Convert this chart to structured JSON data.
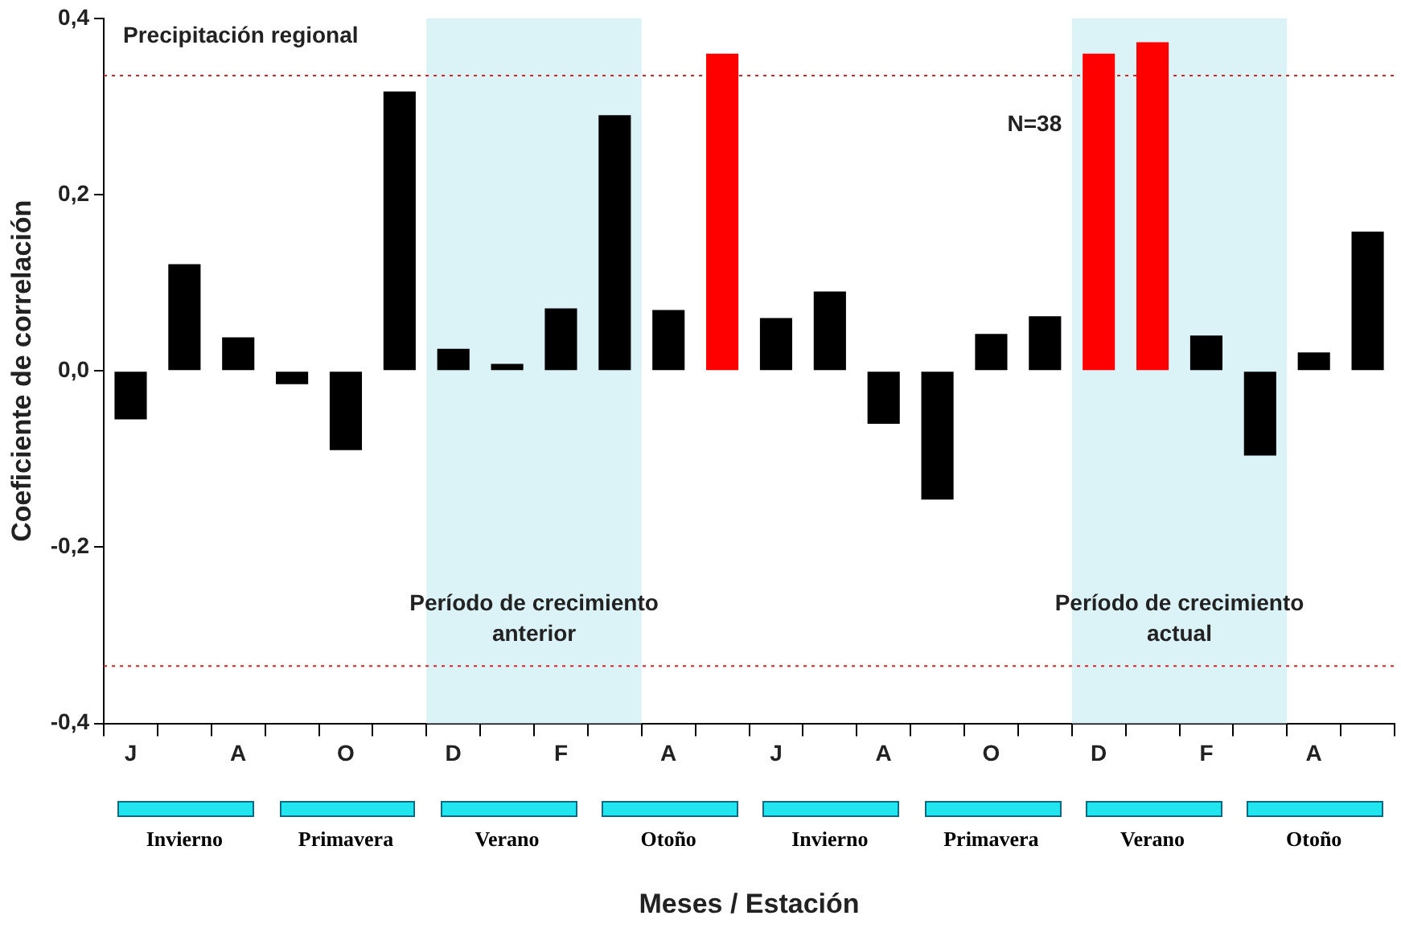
{
  "chart_data": {
    "type": "bar",
    "xlabel": "Meses / Estación",
    "ylabel": "Coeficiente de correlación",
    "categories": [
      "J",
      null,
      "A",
      null,
      "O",
      null,
      "D",
      null,
      "F",
      null,
      "A",
      null,
      "J",
      null,
      "A",
      null,
      "O",
      null,
      "D",
      null,
      "F",
      null,
      "A",
      null
    ],
    "values": [
      -0.055,
      0.121,
      0.038,
      -0.015,
      -0.09,
      0.317,
      0.025,
      0.008,
      0.071,
      0.29,
      0.069,
      0.36,
      0.06,
      0.09,
      -0.06,
      -0.146,
      0.042,
      0.062,
      0.36,
      0.373,
      0.04,
      -0.096,
      0.021,
      0.158
    ],
    "colors": [
      "#000000",
      "#000000",
      "#000000",
      "#000000",
      "#000000",
      "#000000",
      "#000000",
      "#000000",
      "#000000",
      "#000000",
      "#000000",
      "#ff0000",
      "#000000",
      "#000000",
      "#000000",
      "#000000",
      "#000000",
      "#000000",
      "#ff0000",
      "#ff0000",
      "#000000",
      "#000000",
      "#000000",
      "#000000"
    ],
    "ylim": [
      -0.4,
      0.4
    ],
    "yticks": [
      {
        "value": -0.4,
        "label": "-0,4"
      },
      {
        "value": -0.2,
        "label": "-0,2"
      },
      {
        "value": 0,
        "label": "0,0"
      },
      {
        "value": 0.2,
        "label": "0,2"
      },
      {
        "value": 0.4,
        "label": "0,4"
      }
    ],
    "ref_lines": [
      {
        "axis": "y",
        "value": 0.335,
        "color": "#e02020",
        "line_style": "dotted"
      },
      {
        "axis": "y",
        "value": -0.335,
        "color": "#e02020",
        "line_style": "dotted"
      }
    ],
    "annotations": [
      "Precipitación regional",
      "N=38",
      "Período de crecimiento anterior",
      "Período de crecimiento actual",
      "Invierno",
      "Primavera",
      "Verano",
      "Otoño",
      "Invierno",
      "Primavera",
      "Verano",
      "Otoño"
    ],
    "grid": false,
    "legend": false
  }
}
